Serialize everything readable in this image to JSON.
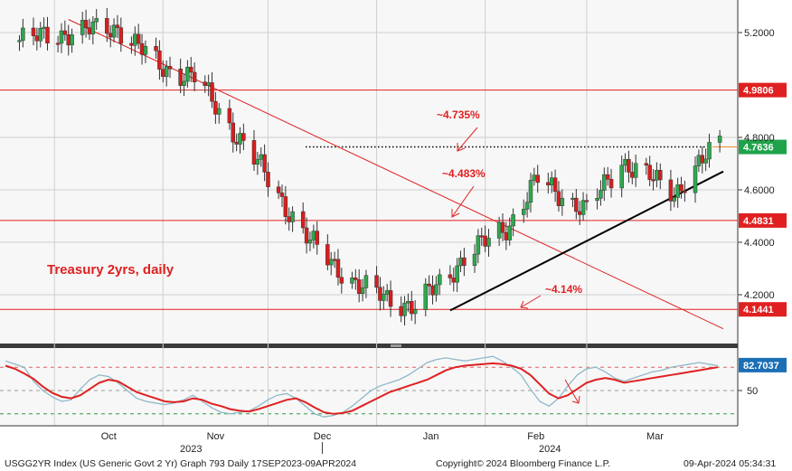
{
  "chart_data": [
    {
      "type": "candlestick",
      "title": "Treasury 2yrs, daily",
      "ylim": [
        4.08,
        5.3
      ],
      "yticks": [
        "5.2000",
        "4.8000",
        "4.6000",
        "4.4000",
        "4.2000"
      ],
      "ytick_values": [
        5.2,
        4.8,
        4.6,
        4.4,
        4.2
      ],
      "grid": true,
      "date_range": [
        "2023-09-17",
        "2024-04-09"
      ],
      "series": [
        {
          "name": "USGG2YR Index",
          "ohlc_sample": [
            {
              "date": "2023-09-21",
              "close": 5.17
            },
            {
              "date": "2023-10-05",
              "close": 5.2
            },
            {
              "date": "2023-10-19",
              "close": 5.22
            },
            {
              "date": "2023-10-31",
              "close": 5.07
            },
            {
              "date": "2023-11-10",
              "close": 5.03
            },
            {
              "date": "2023-11-28",
              "close": 4.7
            },
            {
              "date": "2023-12-13",
              "close": 4.4
            },
            {
              "date": "2023-12-27",
              "close": 4.23
            },
            {
              "date": "2024-01-12",
              "close": 4.15
            },
            {
              "date": "2024-01-26",
              "close": 4.34
            },
            {
              "date": "2024-02-08",
              "close": 4.47
            },
            {
              "date": "2024-02-16",
              "close": 4.64
            },
            {
              "date": "2024-03-01",
              "close": 4.52
            },
            {
              "date": "2024-03-11",
              "close": 4.71
            },
            {
              "date": "2024-03-26",
              "close": 4.59
            },
            {
              "date": "2024-04-08",
              "close": 4.78
            }
          ]
        }
      ],
      "levels": [
        {
          "value": 4.9806,
          "label": "4.9806",
          "color": "#e02020"
        },
        {
          "value": 4.7636,
          "label": "4.7636",
          "color": "#1fa34a"
        },
        {
          "value": 4.4831,
          "label": "4.4831",
          "color": "#e02020"
        },
        {
          "value": 4.1441,
          "label": "4.1441",
          "color": "#e02020"
        }
      ],
      "annotations": [
        "~4.735%",
        "~4.483%",
        "~4.14%"
      ]
    },
    {
      "type": "line",
      "ylim": [
        0,
        100
      ],
      "yticks": [
        "50"
      ],
      "ytick_values": [
        50
      ],
      "reference_lines": [
        80,
        50,
        20
      ],
      "series": [
        {
          "color": "#e02020",
          "values": [
            82,
            78,
            72,
            65,
            55,
            47,
            42,
            40,
            44,
            52,
            60,
            64,
            62,
            55,
            48,
            44,
            40,
            36,
            35,
            36,
            40,
            38,
            33,
            30,
            26,
            24,
            23,
            26,
            30,
            34,
            38,
            40,
            35,
            28,
            22,
            20,
            21,
            24,
            30,
            36,
            42,
            48,
            52,
            56,
            60,
            64,
            70,
            76,
            80,
            82,
            83,
            84,
            85,
            84,
            82,
            78,
            70,
            58,
            46,
            40,
            44,
            52,
            60,
            64,
            66,
            64,
            60,
            62,
            64,
            66,
            68,
            70,
            72,
            74,
            76,
            78,
            80
          ]
        },
        {
          "color": "#8fb8c8",
          "values": [
            88,
            84,
            80,
            62,
            50,
            42,
            36,
            38,
            52,
            64,
            70,
            68,
            60,
            50,
            40,
            36,
            34,
            32,
            34,
            38,
            44,
            36,
            28,
            22,
            20,
            22,
            24,
            30,
            38,
            44,
            46,
            40,
            30,
            20,
            16,
            18,
            22,
            30,
            40,
            50,
            56,
            60,
            64,
            70,
            78,
            86,
            90,
            92,
            90,
            88,
            90,
            92,
            94,
            88,
            80,
            70,
            52,
            36,
            30,
            40,
            56,
            70,
            78,
            80,
            74,
            66,
            62,
            66,
            70,
            74,
            76,
            80,
            82,
            84,
            86,
            84,
            82
          ]
        }
      ],
      "value_label": "82.7037",
      "value_label_color": "#1a6fb5"
    }
  ],
  "axis": {
    "months": [
      "Oct",
      "Nov",
      "Dec",
      "Jan",
      "Feb",
      "Mar"
    ],
    "years": [
      "2023",
      "2024"
    ]
  },
  "footer": {
    "left": "USGG2YR Index (US Generic Govt 2 Yr) Graph 793  Daily 17SEP2023-09APR2024",
    "center": "Copyright© 2024 Bloomberg Finance L.P.",
    "right": "09-Apr-2024 05:34:31"
  },
  "colors": {
    "up": "#2fa84f",
    "down": "#d81e1e",
    "resistance": "#e02020",
    "support": "#000000",
    "dotted": "#000000"
  }
}
